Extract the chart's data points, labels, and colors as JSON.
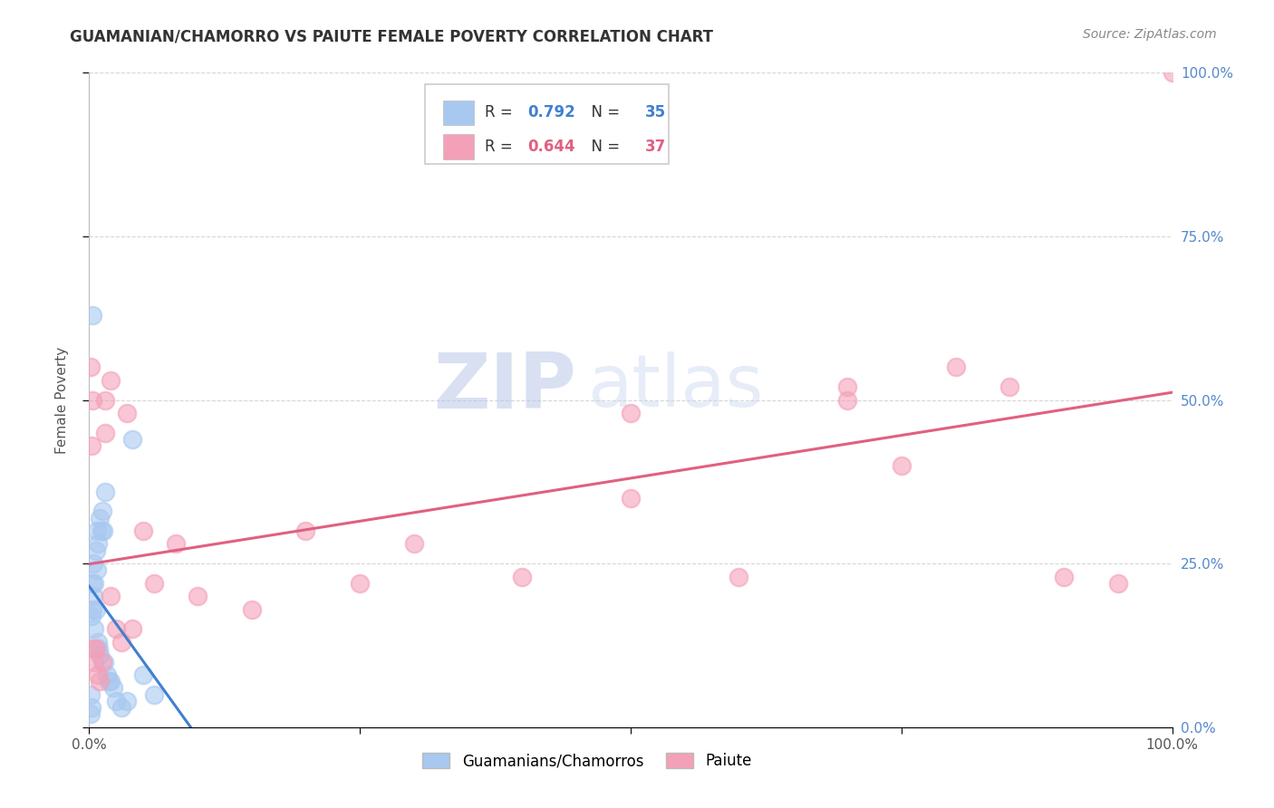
{
  "title": "GUAMANIAN/CHAMORRO VS PAIUTE FEMALE POVERTY CORRELATION CHART",
  "source": "Source: ZipAtlas.com",
  "ylabel_label": "Female Poverty",
  "blue_label": "Guamanians/Chamorros",
  "pink_label": "Paiute",
  "blue_R": 0.792,
  "blue_N": 35,
  "pink_R": 0.644,
  "pink_N": 37,
  "blue_color": "#A8C8F0",
  "pink_color": "#F4A0B8",
  "blue_line_color": "#4080D0",
  "pink_line_color": "#E06080",
  "background_color": "#FFFFFF",
  "grid_color": "#CCCCCC",
  "watermark_zip": "ZIP",
  "watermark_atlas": "atlas",
  "title_color": "#333333",
  "source_color": "#888888",
  "right_tick_color": "#5588CC",
  "blue_x": [
    0.002,
    0.003,
    0.003,
    0.004,
    0.004,
    0.005,
    0.005,
    0.006,
    0.006,
    0.007,
    0.007,
    0.008,
    0.008,
    0.009,
    0.01,
    0.01,
    0.011,
    0.012,
    0.013,
    0.014,
    0.015,
    0.016,
    0.018,
    0.02,
    0.022,
    0.025,
    0.03,
    0.035,
    0.04,
    0.05,
    0.06,
    0.003,
    0.002,
    0.001,
    0.001
  ],
  "blue_y": [
    0.17,
    0.22,
    0.18,
    0.2,
    0.25,
    0.22,
    0.15,
    0.27,
    0.18,
    0.3,
    0.24,
    0.28,
    0.13,
    0.12,
    0.32,
    0.11,
    0.3,
    0.33,
    0.3,
    0.1,
    0.36,
    0.08,
    0.07,
    0.07,
    0.06,
    0.04,
    0.03,
    0.04,
    0.44,
    0.08,
    0.05,
    0.63,
    0.03,
    0.02,
    0.05
  ],
  "pink_x": [
    0.001,
    0.002,
    0.003,
    0.004,
    0.005,
    0.006,
    0.008,
    0.01,
    0.012,
    0.015,
    0.015,
    0.02,
    0.02,
    0.025,
    0.03,
    0.035,
    0.04,
    0.05,
    0.06,
    0.08,
    0.1,
    0.15,
    0.2,
    0.25,
    0.3,
    0.4,
    0.5,
    0.5,
    0.6,
    0.7,
    0.7,
    0.75,
    0.8,
    0.85,
    0.9,
    0.95,
    1.0
  ],
  "pink_y": [
    0.55,
    0.43,
    0.5,
    0.12,
    0.1,
    0.12,
    0.08,
    0.07,
    0.1,
    0.5,
    0.45,
    0.53,
    0.2,
    0.15,
    0.13,
    0.48,
    0.15,
    0.3,
    0.22,
    0.28,
    0.2,
    0.18,
    0.3,
    0.22,
    0.28,
    0.23,
    0.48,
    0.35,
    0.23,
    0.52,
    0.5,
    0.4,
    0.55,
    0.52,
    0.23,
    0.22,
    1.0
  ]
}
